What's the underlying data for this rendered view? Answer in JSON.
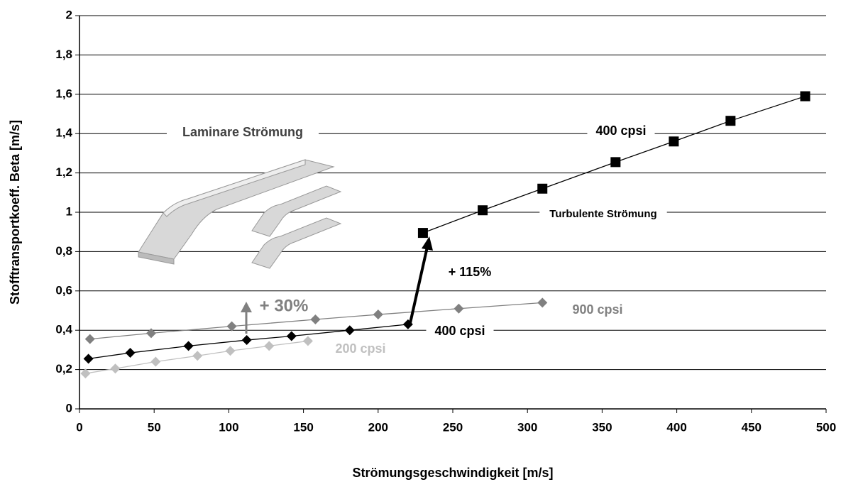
{
  "chart_data": {
    "type": "line",
    "x_label": "Strömungsgeschwindigkeit [m/s]",
    "y_label": "Stofftransportkoeff. Beta [m/s]",
    "xlim": [
      0,
      500
    ],
    "xticks": [
      0,
      50,
      100,
      150,
      200,
      250,
      300,
      350,
      400,
      450,
      500
    ],
    "ylim": [
      0,
      2
    ],
    "yticks": [
      0,
      {
        "value": 0.2,
        "label": "0,2"
      },
      {
        "value": 0.4,
        "label": "0,4"
      },
      {
        "value": 0.6,
        "label": "0,6"
      },
      {
        "value": 0.8,
        "label": "0,8"
      },
      1,
      {
        "value": 1.2,
        "label": "1,2"
      },
      {
        "value": 1.4,
        "label": "1,4"
      },
      {
        "value": 1.6,
        "label": "1,6"
      },
      {
        "value": 1.8,
        "label": "1,8"
      },
      2
    ],
    "grid": true,
    "series": [
      {
        "name": "900 cpsi",
        "color": "#808080",
        "marker": "diamond",
        "x": [
          7,
          48,
          102,
          158,
          200,
          254,
          310
        ],
        "values": [
          0.355,
          0.385,
          0.42,
          0.455,
          0.48,
          0.51,
          0.54
        ]
      },
      {
        "name": "400 cpsi",
        "color": "#000000",
        "marker": "diamond",
        "x": [
          6,
          34,
          73,
          112,
          142,
          181,
          220
        ],
        "values": [
          0.255,
          0.285,
          0.32,
          0.35,
          0.37,
          0.4,
          0.43
        ]
      },
      {
        "name": "200 cpsi",
        "color": "#c0c0c0",
        "marker": "diamond",
        "x": [
          4,
          24,
          51,
          79,
          101,
          127,
          153
        ],
        "values": [
          0.18,
          0.205,
          0.24,
          0.27,
          0.295,
          0.32,
          0.345
        ]
      },
      {
        "name": "400 cpsi",
        "color": "#000000",
        "marker": "square",
        "x": [
          230,
          270,
          310,
          359,
          398,
          436,
          486
        ],
        "values": [
          0.895,
          1.01,
          1.12,
          1.255,
          1.36,
          1.465,
          1.59
        ]
      }
    ],
    "annotations": [
      "Laminare Strömung",
      "Turbulente Strömung",
      "+ 115%",
      "+ 30%"
    ]
  }
}
